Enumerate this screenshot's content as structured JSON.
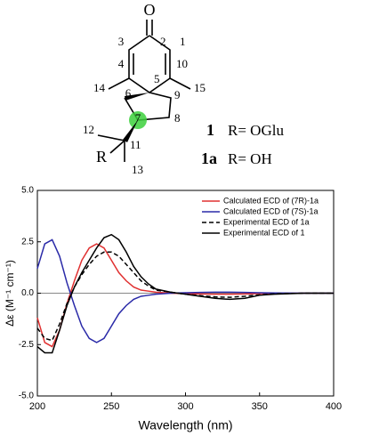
{
  "structure": {
    "atoms": [
      "O",
      "2",
      "3",
      "1",
      "4",
      "10",
      "5",
      "14",
      "15",
      "6",
      "9",
      "7",
      "8",
      "12",
      "11",
      "R",
      "13"
    ],
    "compounds": [
      {
        "id": "1",
        "label": "R= OGlu"
      },
      {
        "id": "1a",
        "label": "R= OH"
      }
    ]
  },
  "chart_data": {
    "type": "line",
    "x_label": "Wavelength (nm)",
    "y_label": "Δε (M⁻¹ cm⁻¹)",
    "x": [
      200,
      205,
      210,
      215,
      220,
      225,
      230,
      235,
      240,
      245,
      250,
      255,
      260,
      265,
      270,
      275,
      280,
      290,
      300,
      310,
      320,
      330,
      340,
      350,
      360,
      380,
      400
    ],
    "series": [
      {
        "name": "Calculated ECD of (7R)-1a",
        "color": "#e03030",
        "dash": false,
        "values": [
          -1.2,
          -2.4,
          -2.6,
          -1.8,
          -0.5,
          0.6,
          1.6,
          2.2,
          2.4,
          2.2,
          1.6,
          1.0,
          0.6,
          0.3,
          0.15,
          0.1,
          0.05,
          0,
          -0.02,
          -0.04,
          -0.05,
          -0.05,
          -0.04,
          -0.02,
          -0.01,
          0,
          0
        ]
      },
      {
        "name": "Calculated ECD of (7S)-1a",
        "color": "#2a2aa8",
        "dash": false,
        "values": [
          1.2,
          2.4,
          2.6,
          1.8,
          0.5,
          -0.6,
          -1.6,
          -2.2,
          -2.4,
          -2.2,
          -1.6,
          -1.0,
          -0.6,
          -0.3,
          -0.15,
          -0.1,
          -0.05,
          0,
          0.02,
          0.04,
          0.05,
          0.05,
          0.04,
          0.02,
          0.01,
          0,
          0
        ]
      },
      {
        "name": "Experimental ECD of 1a",
        "color": "#000000",
        "dash": true,
        "values": [
          -1.7,
          -2.2,
          -2.3,
          -1.5,
          -0.5,
          0.3,
          0.9,
          1.4,
          1.8,
          2.0,
          2.0,
          1.8,
          1.4,
          1.0,
          0.6,
          0.35,
          0.15,
          0.05,
          -0.05,
          -0.12,
          -0.18,
          -0.2,
          -0.15,
          -0.08,
          -0.03,
          0,
          0
        ]
      },
      {
        "name": "Experimental ECD of 1",
        "color": "#000000",
        "dash": false,
        "values": [
          -2.6,
          -2.9,
          -2.9,
          -1.8,
          -0.6,
          0.3,
          1.0,
          1.6,
          2.2,
          2.7,
          2.85,
          2.6,
          2.0,
          1.3,
          0.8,
          0.45,
          0.2,
          0.05,
          -0.05,
          -0.15,
          -0.25,
          -0.3,
          -0.25,
          -0.1,
          -0.05,
          0,
          0
        ]
      }
    ],
    "xlim": [
      200,
      400
    ],
    "xticks": [
      200,
      250,
      300,
      350,
      400
    ],
    "ylim": [
      -5,
      5
    ],
    "yticks": [
      {
        "value": -5,
        "label": "-5.0"
      },
      -2.5,
      {
        "value": 0,
        "label": "0.0"
      },
      2.5,
      {
        "value": 5,
        "label": "5.0"
      }
    ],
    "legend": "upper right"
  }
}
